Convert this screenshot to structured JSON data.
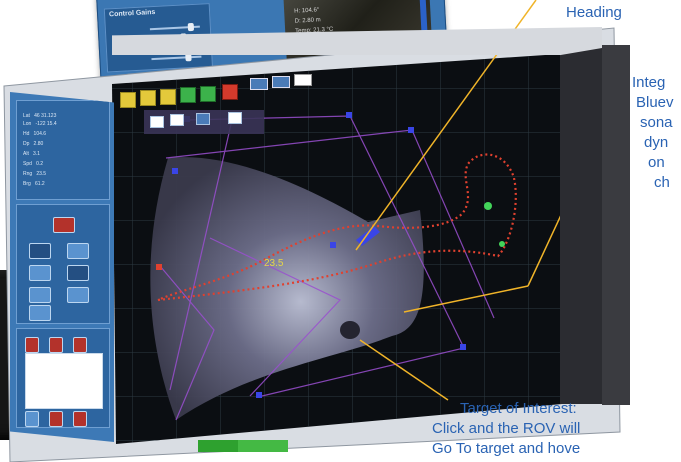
{
  "callouts": {
    "heading": "Heading",
    "integ_1": "Integ",
    "integ_2": "Bluev",
    "integ_3": "sona",
    "integ_4": "dyn",
    "integ_5": "on",
    "integ_6": "ch",
    "target_line1": "Target of Interest:",
    "target_line2": "Click and the ROV will",
    "target_line3": "Go To target and hove"
  },
  "secondary_window": {
    "panel_title": "Control Gains",
    "cam_line1": "H: 104.6°",
    "cam_line2": "D: 2.80 m",
    "cam_line3": "Temp: 21.3 °C"
  },
  "sonar": {
    "target_label": "23.5"
  },
  "colors": {
    "accent": "#2a63b3",
    "callout_line": "#f0b429",
    "panel_blue": "#3d79b6",
    "track_red": "#e0412f",
    "grid_purple": "#9a4fd0",
    "waypoint_blue": "#3a45e6"
  },
  "icons": {
    "toolbar": [
      "select-icon",
      "waypoint-icon",
      "route-icon",
      "target-icon",
      "rov-icon",
      "stop-icon",
      "camera-icon",
      "sonar-icon",
      "ruler-icon"
    ]
  }
}
